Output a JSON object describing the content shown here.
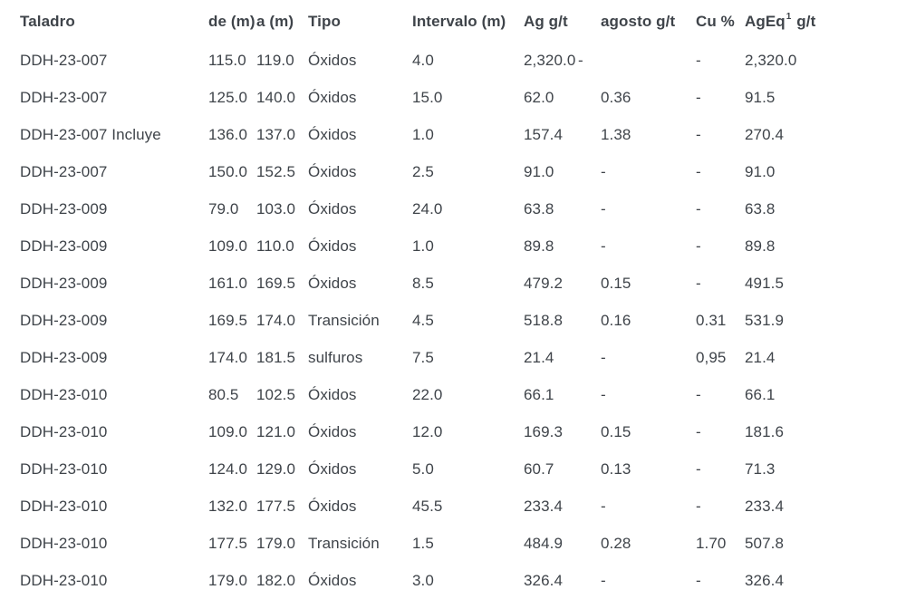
{
  "colors": {
    "text": "#3f444a",
    "background": "#ffffff"
  },
  "table": {
    "headers": [
      "Taladro",
      "de (m)",
      "a (m)",
      "Tipo",
      "Intervalo (m)",
      "Ag g/t",
      "agosto g/t",
      "Cu %"
    ],
    "ageq_header": {
      "base": "AgEq",
      "sup": "1",
      "unit": "g/t"
    },
    "rows": [
      [
        "DDH-23-007",
        "115.0",
        "119.0",
        "Óxidos",
        "4.0",
        "2,320.0",
        "-",
        "-",
        "2,320.0"
      ],
      [
        "DDH-23-007",
        "125.0",
        "140.0",
        "Óxidos",
        "15.0",
        "62.0",
        "0.36",
        "-",
        "91.5"
      ],
      [
        "DDH-23-007 Incluye",
        "136.0",
        "137.0",
        "Óxidos",
        "1.0",
        "157.4",
        "1.38",
        "-",
        "270.4"
      ],
      [
        "DDH-23-007",
        "150.0",
        "152.5",
        "Óxidos",
        "2.5",
        "91.0",
        "-",
        "-",
        "91.0"
      ],
      [
        "DDH-23-009",
        "79.0",
        "103.0",
        "Óxidos",
        "24.0",
        "63.8",
        "-",
        "-",
        "63.8"
      ],
      [
        "DDH-23-009",
        "109.0",
        "110.0",
        "Óxidos",
        "1.0",
        "89.8",
        "-",
        "-",
        "89.8"
      ],
      [
        "DDH-23-009",
        "161.0",
        "169.5",
        "Óxidos",
        "8.5",
        "479.2",
        "0.15",
        "-",
        "491.5"
      ],
      [
        "DDH-23-009",
        "169.5",
        "174.0",
        "Transición",
        "4.5",
        "518.8",
        "0.16",
        "0.31",
        "531.9"
      ],
      [
        "DDH-23-009",
        "174.0",
        "181.5",
        "sulfuros",
        "7.5",
        "21.4",
        "-",
        "0,95",
        "21.4"
      ],
      [
        "DDH-23-010",
        "80.5",
        "102.5",
        "Óxidos",
        "22.0",
        "66.1",
        "-",
        "-",
        "66.1"
      ],
      [
        "DDH-23-010",
        "109.0",
        "121.0",
        "Óxidos",
        "12.0",
        "169.3",
        "0.15",
        "-",
        "181.6"
      ],
      [
        "DDH-23-010",
        "124.0",
        "129.0",
        "Óxidos",
        "5.0",
        "60.7",
        "0.13",
        "-",
        "71.3"
      ],
      [
        "DDH-23-010",
        "132.0",
        "177.5",
        "Óxidos",
        "45.5",
        "233.4",
        "-",
        "-",
        "233.4"
      ],
      [
        "DDH-23-010",
        "177.5",
        "179.0",
        "Transición",
        "1.5",
        "484.9",
        "0.28",
        "1.70",
        "507.8"
      ],
      [
        "DDH-23-010",
        "179.0",
        "182.0",
        "Óxidos",
        "3.0",
        "326.4",
        "-",
        "-",
        "326.4"
      ]
    ]
  }
}
